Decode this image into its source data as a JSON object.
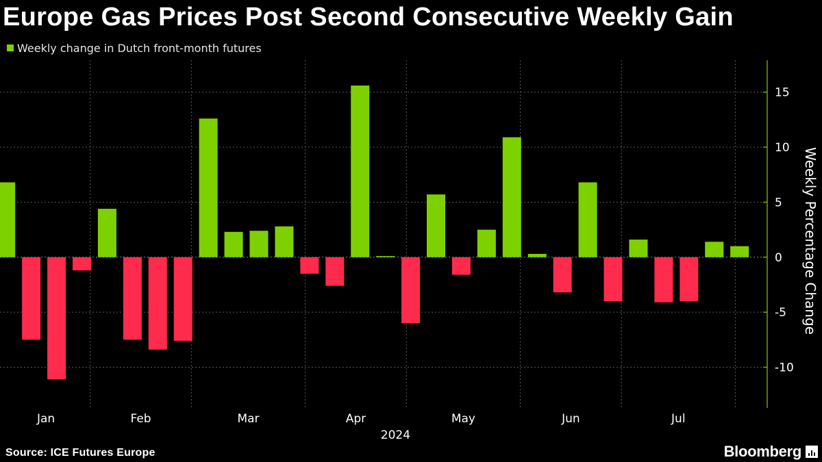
{
  "title": "Europe Gas Prices Post Second Consecutive Weekly Gain",
  "legend": {
    "label": "Weekly change in Dutch front-month futures",
    "color": "#7ed100"
  },
  "colors": {
    "positive": "#7ed100",
    "negative": "#ff2b4d",
    "axis": "#7ed100",
    "grid": "#5a5a5a"
  },
  "footer": {
    "source": "Source: ICE Futures Europe",
    "brand": "Bloomberg"
  },
  "chart_data": {
    "type": "bar",
    "title": "Europe Gas Prices Post Second Consecutive Weekly Gain",
    "xlabel": "2024",
    "ylabel": "Weekly Percentage Change",
    "ylim": [
      -13.7,
      17.9
    ],
    "yticks": [
      15,
      10,
      5,
      0,
      -5,
      -10
    ],
    "ytick_labels": [
      "15",
      "10",
      "5",
      "0",
      "-5",
      "-10"
    ],
    "grid": true,
    "legend_position": "top-left",
    "series": [
      {
        "name": "Weekly change in Dutch front-month futures",
        "values": [
          6.8,
          -7.5,
          -11.1,
          -1.2,
          4.4,
          -7.5,
          -8.4,
          -7.6,
          12.6,
          2.3,
          2.4,
          2.8,
          -1.5,
          -2.6,
          15.6,
          0.1,
          -6.0,
          5.7,
          -1.6,
          2.5,
          10.9,
          0.3,
          -3.2,
          6.8,
          -4.0,
          1.6,
          -4.1,
          -4.0,
          1.4,
          1.0
        ]
      }
    ],
    "months": [
      {
        "label": "Jan",
        "start": -0.17,
        "end": 3.33
      },
      {
        "label": "Feb",
        "start": 3.33,
        "end": 7.33
      },
      {
        "label": "Mar",
        "start": 7.33,
        "end": 11.83
      },
      {
        "label": "Apr",
        "start": 11.83,
        "end": 15.83
      },
      {
        "label": "May",
        "start": 15.83,
        "end": 20.33
      },
      {
        "label": "Jun",
        "start": 20.33,
        "end": 24.33
      },
      {
        "label": "Jul",
        "start": 24.33,
        "end": 28.83
      }
    ],
    "month_separators": [
      3.33,
      7.33,
      11.83,
      15.83,
      20.33,
      24.33,
      28.83
    ]
  }
}
